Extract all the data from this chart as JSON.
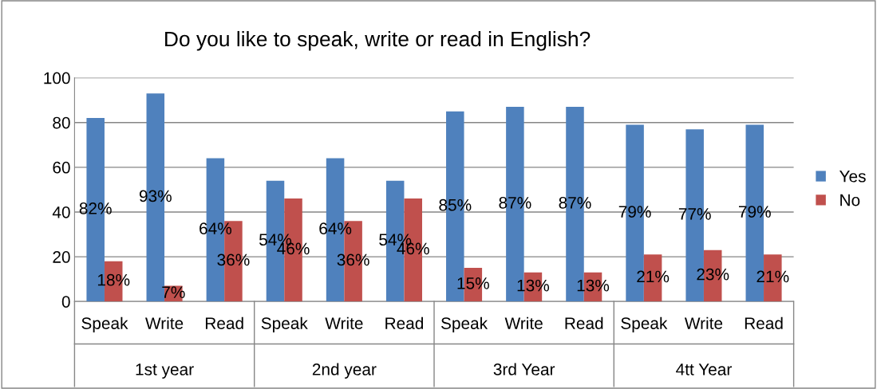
{
  "chart_data": {
    "type": "bar",
    "title": "Do you like to speak, write or read in English?",
    "categories": [
      "Speak",
      "Write",
      "Read",
      "Speak",
      "Write",
      "Read",
      "Speak",
      "Write",
      "Read",
      "Speak",
      "Write",
      "Read"
    ],
    "series": [
      {
        "name": "Yes",
        "color": "#4f81bd",
        "values": [
          82,
          93,
          64,
          54,
          64,
          54,
          85,
          87,
          87,
          79,
          77,
          79
        ],
        "value_labels": [
          "82%",
          "93%",
          "64%",
          "54%",
          "64%",
          "54%",
          "85%",
          "87%",
          "87%",
          "79%",
          "77%",
          "79%"
        ]
      },
      {
        "name": "No",
        "color": "#c0504d",
        "values": [
          18,
          7,
          36,
          46,
          36,
          46,
          15,
          13,
          13,
          21,
          23,
          21
        ],
        "value_labels": [
          "18%",
          "7%",
          "36%",
          "46%",
          "36%",
          "46%",
          "15%",
          "13%",
          "13%",
          "21%",
          "23%",
          "21%"
        ]
      }
    ],
    "annotations": [
      "1st year",
      "2nd year",
      "3rd Year",
      "4tt Year"
    ],
    "ylim": [
      0,
      100
    ],
    "yticks": [
      0,
      20,
      40,
      60,
      80,
      100
    ],
    "grid": "y",
    "legend": "right"
  }
}
